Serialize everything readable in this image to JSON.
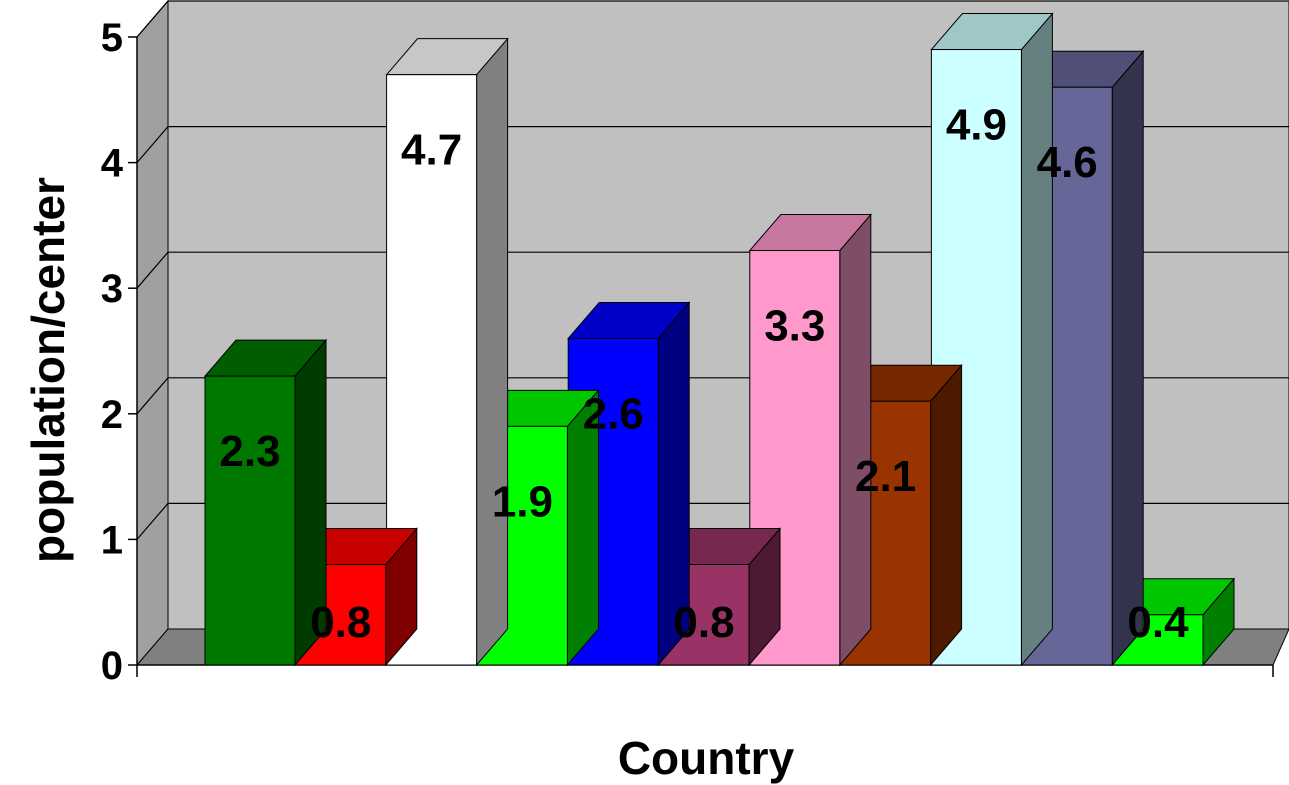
{
  "chart_data": {
    "type": "bar",
    "title": "",
    "xlabel": "Country",
    "ylabel": "population/center",
    "ylim": [
      0,
      5
    ],
    "yticks": [
      0,
      1,
      2,
      3,
      4,
      5
    ],
    "grid": true,
    "legend": "none",
    "data_labels": [
      "2.3",
      "0.8",
      "4.7",
      "1.9",
      "2.6",
      "0.8",
      "3.3",
      "2.1",
      "4.9",
      "4.6",
      "0.4"
    ],
    "values": [
      2.3,
      0.8,
      4.7,
      1.9,
      2.6,
      0.8,
      3.3,
      2.1,
      4.9,
      4.6,
      0.4
    ],
    "colors": [
      "#007800",
      "#ff0000",
      "#ffffff",
      "#00ff00",
      "#0000ff",
      "#993366",
      "#ff99cc",
      "#993300",
      "#ccffff",
      "#666699",
      "#00ff00"
    ]
  }
}
